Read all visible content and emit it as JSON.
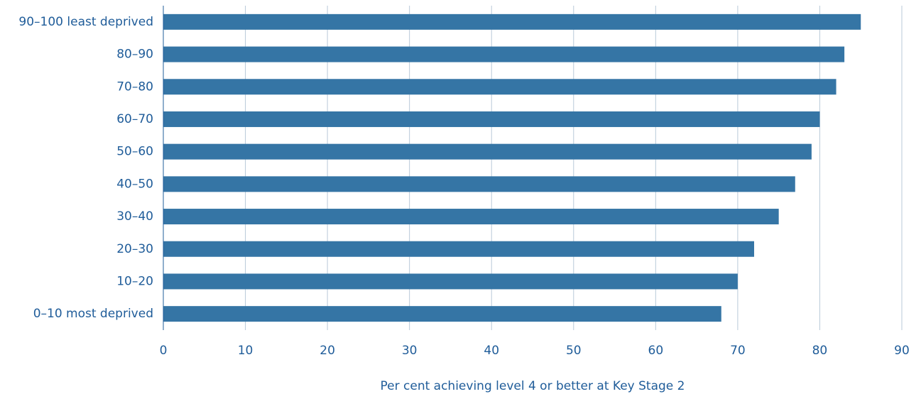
{
  "chart_data": {
    "type": "hbar",
    "x_label": "Per cent achieving level 4 or better at Key Stage 2",
    "categories": [
      "90–100 least deprived",
      "80–90",
      "70–80",
      "60–70",
      "50–60",
      "40–50",
      "30–40",
      "20–30",
      "10–20",
      "0–10 most deprived"
    ],
    "values": [
      85,
      83,
      82,
      80,
      79,
      77,
      75,
      72,
      70,
      68
    ],
    "color": "#3575a5",
    "xlim": [
      0,
      90
    ],
    "xticks": [
      0,
      10,
      20,
      30,
      40,
      50,
      60,
      70,
      80,
      90
    ],
    "grid": true
  }
}
